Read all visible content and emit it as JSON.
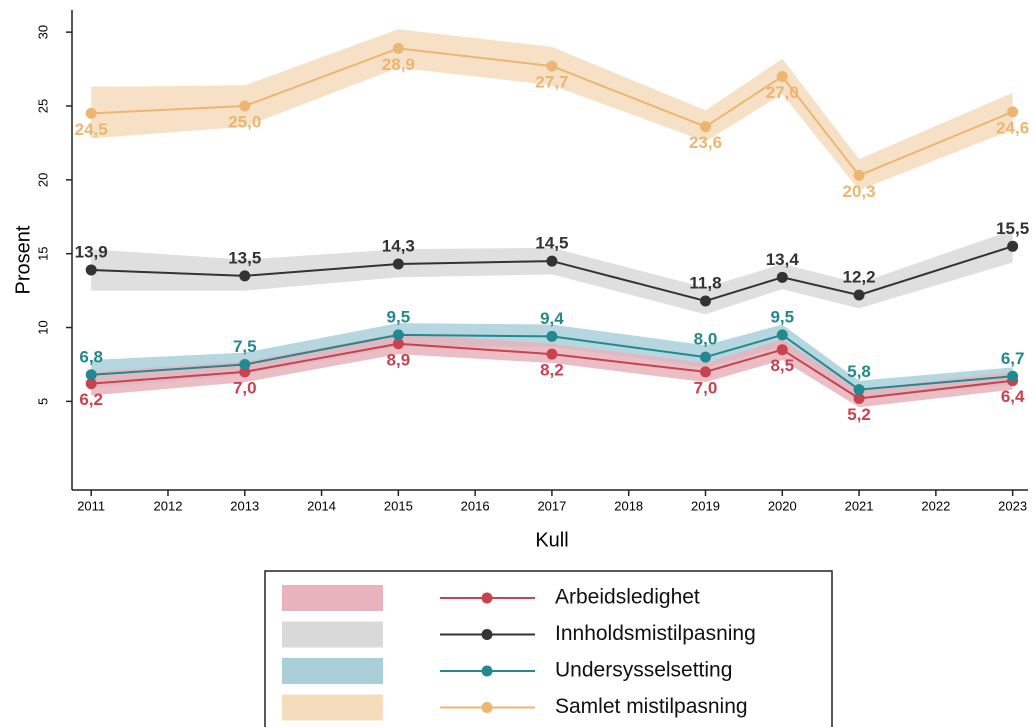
{
  "chart_data": {
    "type": "line",
    "x_label": "Kull",
    "y_label": "Prosent",
    "x": [
      2011,
      2013,
      2015,
      2017,
      2019,
      2020,
      2021,
      2023
    ],
    "xlim": [
      2010.75,
      2023.2
    ],
    "xticks": [
      2011,
      2012,
      2013,
      2014,
      2015,
      2016,
      2017,
      2018,
      2019,
      2020,
      2021,
      2022,
      2023
    ],
    "ylim": [
      -1,
      31.5
    ],
    "yticks": [
      5,
      10,
      15,
      20,
      25,
      30
    ],
    "series": [
      {
        "name": "Arbeidsledighet",
        "color": "#c8424f",
        "band_color": "#e8b3bc",
        "label_position": "below",
        "values": [
          6.2,
          7.0,
          8.9,
          8.2,
          7.0,
          8.5,
          5.2,
          6.4
        ],
        "value_labels": [
          "6,2",
          "7,0",
          "8,9",
          "8,2",
          "7,0",
          "8,5",
          "5,2",
          "6,4"
        ],
        "lower": [
          5.4,
          6.3,
          8.2,
          7.6,
          6.3,
          7.8,
          4.6,
          5.8
        ],
        "upper": [
          7.0,
          7.7,
          9.6,
          8.9,
          7.6,
          9.2,
          5.8,
          7.0
        ]
      },
      {
        "name": "Innholdsmistilpasning",
        "color": "#333333",
        "band_color": "#d9d9d9",
        "label_position": "above",
        "values": [
          13.9,
          13.5,
          14.3,
          14.5,
          11.8,
          13.4,
          12.2,
          15.5
        ],
        "value_labels": [
          "13,9",
          "13,5",
          "14,3",
          "14,5",
          "11,8",
          "13,4",
          "12,2",
          "15,5"
        ],
        "lower": [
          12.5,
          12.5,
          13.4,
          13.6,
          10.9,
          12.6,
          11.3,
          14.4
        ],
        "upper": [
          15.3,
          14.6,
          15.3,
          15.4,
          12.7,
          14.3,
          13.0,
          16.6
        ]
      },
      {
        "name": "Undersysselsetting",
        "color": "#23898f",
        "band_color": "#a9d0d9",
        "label_position": "above",
        "values": [
          6.8,
          7.5,
          9.5,
          9.4,
          8.0,
          9.5,
          5.8,
          6.7
        ],
        "value_labels": [
          "6,8",
          "7,5",
          "9,5",
          "9,4",
          "8,0",
          "9,5",
          "5,8",
          "6,7"
        ],
        "lower": [
          5.9,
          6.8,
          8.7,
          8.7,
          7.3,
          8.7,
          5.2,
          6.1
        ],
        "upper": [
          7.8,
          8.3,
          10.3,
          10.2,
          8.8,
          10.2,
          6.4,
          7.3
        ]
      },
      {
        "name": "Samlet mistilpasning",
        "color": "#ecb672",
        "band_color": "#f5dcbc",
        "label_position": "below",
        "values": [
          24.5,
          25.0,
          28.9,
          27.7,
          23.6,
          27.0,
          20.3,
          24.6
        ],
        "value_labels": [
          "24,5",
          "25,0",
          "28,9",
          "27,7",
          "23,6",
          "27,0",
          "20,3",
          "24,6"
        ],
        "lower": [
          22.8,
          23.6,
          27.6,
          26.4,
          22.6,
          25.8,
          19.3,
          23.4
        ],
        "upper": [
          26.3,
          26.4,
          30.2,
          29.0,
          24.7,
          28.2,
          21.4,
          25.9
        ]
      }
    ]
  }
}
